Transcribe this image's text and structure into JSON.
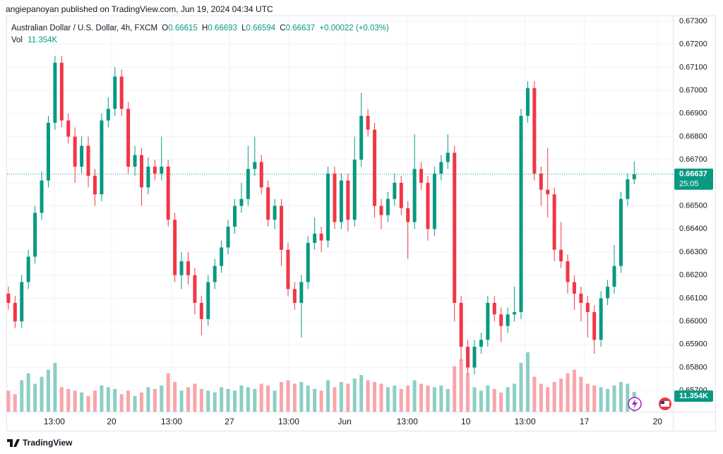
{
  "header": {
    "published": "angiepanoyan published on TradingView.com, Jun 19, 2024 04:34 UTC"
  },
  "footer": {
    "brand": "TradingView"
  },
  "chart_data": {
    "type": "candlestick",
    "title": "Australian Dollar / U.S. Dollar, 4h, FXCM",
    "legend": {
      "o": "O",
      "h": "H",
      "l": "L",
      "c": "C",
      "change": "+0.00022 (+0.03%)",
      "vol": "Vol"
    },
    "last_volume_label": "11.354K",
    "price_tag_time": "25:05",
    "up_color": "#089981",
    "down_color": "#f23645",
    "volume_up_color": "#8ccfc4",
    "volume_down_color": "#f8a5aa",
    "grid": true,
    "open": [
      0.6612,
      0.6608,
      0.66,
      0.6617,
      0.6628,
      0.6647,
      0.6661,
      0.6686,
      0.6712,
      0.6687,
      0.668,
      0.6667,
      0.6676,
      0.6663,
      0.6655,
      0.6687,
      0.6692,
      0.6706,
      0.6692,
      0.6667,
      0.6672,
      0.6658,
      0.6667,
      0.6664,
      0.6667,
      0.6644,
      0.662,
      0.6626,
      0.662,
      0.6608,
      0.6601,
      0.6617,
      0.6624,
      0.6632,
      0.6641,
      0.665,
      0.6653,
      0.6666,
      0.6669,
      0.6658,
      0.6644,
      0.665,
      0.6631,
      0.6614,
      0.6608,
      0.6617,
      0.6634,
      0.6638,
      0.6635,
      0.6664,
      0.6643,
      0.6661,
      0.6644,
      0.667,
      0.6689,
      0.6683,
      0.665,
      0.6646,
      0.6653,
      0.666,
      0.6649,
      0.6643,
      0.6666,
      0.666,
      0.664,
      0.6664,
      0.6669,
      0.6673,
      0.6608,
      0.6589,
      0.658,
      0.6589,
      0.6592,
      0.6608,
      0.6603,
      0.6598,
      0.6603,
      0.6604,
      0.6689,
      0.6701,
      0.6664,
      0.6657,
      0.6655,
      0.6631,
      0.6626,
      0.6617,
      0.6612,
      0.6608,
      0.6604,
      0.6592,
      0.661,
      0.6615,
      0.6624,
      0.6653,
      0.66615
    ],
    "high": [
      0.6615,
      0.6611,
      0.662,
      0.6631,
      0.665,
      0.6665,
      0.6689,
      0.6715,
      0.6715,
      0.669,
      0.6684,
      0.668,
      0.668,
      0.6666,
      0.669,
      0.6697,
      0.671,
      0.6709,
      0.6695,
      0.6676,
      0.6675,
      0.6671,
      0.667,
      0.668,
      0.667,
      0.6647,
      0.663,
      0.663,
      0.6623,
      0.6611,
      0.662,
      0.6627,
      0.6635,
      0.6644,
      0.6653,
      0.666,
      0.6676,
      0.668,
      0.6672,
      0.6661,
      0.6653,
      0.6653,
      0.6634,
      0.6617,
      0.662,
      0.6637,
      0.6645,
      0.6641,
      0.6667,
      0.6667,
      0.6664,
      0.6664,
      0.668,
      0.6699,
      0.6692,
      0.6686,
      0.6653,
      0.6656,
      0.6664,
      0.6663,
      0.6652,
      0.6681,
      0.6669,
      0.6663,
      0.6667,
      0.6672,
      0.6681,
      0.6676,
      0.6611,
      0.6592,
      0.6592,
      0.6595,
      0.6611,
      0.6611,
      0.6606,
      0.6606,
      0.6615,
      0.6692,
      0.6704,
      0.6704,
      0.6667,
      0.6675,
      0.6658,
      0.6643,
      0.6629,
      0.662,
      0.6615,
      0.6611,
      0.6607,
      0.6613,
      0.6618,
      0.6633,
      0.6656,
      0.6664,
      0.66693
    ],
    "low": [
      0.6605,
      0.6597,
      0.6597,
      0.6614,
      0.6625,
      0.6644,
      0.6658,
      0.6683,
      0.6684,
      0.6677,
      0.666,
      0.6664,
      0.6658,
      0.665,
      0.6652,
      0.6684,
      0.6689,
      0.6689,
      0.6664,
      0.6663,
      0.665,
      0.6655,
      0.6661,
      0.6661,
      0.6641,
      0.6617,
      0.6614,
      0.6616,
      0.6603,
      0.6594,
      0.6598,
      0.6614,
      0.6621,
      0.6629,
      0.6638,
      0.6647,
      0.665,
      0.6663,
      0.6655,
      0.6641,
      0.664,
      0.6624,
      0.6611,
      0.6605,
      0.6593,
      0.6614,
      0.6631,
      0.663,
      0.6632,
      0.664,
      0.664,
      0.6639,
      0.6641,
      0.6667,
      0.668,
      0.6645,
      0.664,
      0.6643,
      0.665,
      0.6646,
      0.6627,
      0.664,
      0.6657,
      0.6635,
      0.6637,
      0.6661,
      0.6666,
      0.66,
      0.6583,
      0.6577,
      0.6577,
      0.6586,
      0.6589,
      0.66,
      0.6591,
      0.6595,
      0.66,
      0.6601,
      0.6686,
      0.6661,
      0.665,
      0.6645,
      0.6626,
      0.6623,
      0.6612,
      0.6605,
      0.66,
      0.6593,
      0.6586,
      0.6589,
      0.6607,
      0.6612,
      0.6621,
      0.665,
      0.66594
    ],
    "close": [
      0.6608,
      0.66,
      0.6617,
      0.6628,
      0.6647,
      0.6661,
      0.6686,
      0.6712,
      0.6687,
      0.668,
      0.6667,
      0.6676,
      0.6663,
      0.6655,
      0.6687,
      0.6692,
      0.6706,
      0.6692,
      0.6667,
      0.6672,
      0.6658,
      0.6667,
      0.6664,
      0.6667,
      0.6644,
      0.662,
      0.6626,
      0.662,
      0.6608,
      0.6601,
      0.6617,
      0.6624,
      0.6632,
      0.6641,
      0.665,
      0.6653,
      0.6666,
      0.6669,
      0.6658,
      0.6644,
      0.665,
      0.6631,
      0.6614,
      0.6608,
      0.6617,
      0.6634,
      0.6638,
      0.6635,
      0.6664,
      0.6643,
      0.6661,
      0.6644,
      0.667,
      0.6689,
      0.6683,
      0.665,
      0.6646,
      0.6653,
      0.666,
      0.6649,
      0.6643,
      0.6666,
      0.666,
      0.664,
      0.6664,
      0.6669,
      0.6673,
      0.6608,
      0.6589,
      0.658,
      0.6589,
      0.6592,
      0.6608,
      0.6603,
      0.6598,
      0.6603,
      0.6604,
      0.6689,
      0.6701,
      0.6664,
      0.6657,
      0.6655,
      0.6631,
      0.6626,
      0.6617,
      0.6612,
      0.6608,
      0.6604,
      0.6592,
      0.661,
      0.6615,
      0.6624,
      0.6653,
      0.66615,
      0.66637
    ],
    "volume": [
      12000,
      10000,
      18000,
      22000,
      16000,
      20000,
      24000,
      28000,
      14000,
      13000,
      12000,
      11000,
      9000,
      12000,
      15000,
      14000,
      13000,
      10000,
      12000,
      9000,
      11000,
      14000,
      13000,
      15000,
      22000,
      17000,
      12000,
      14000,
      16000,
      13000,
      12000,
      11000,
      14000,
      13000,
      12000,
      15000,
      14000,
      13000,
      16000,
      15000,
      12000,
      17000,
      18000,
      16000,
      17000,
      15000,
      13000,
      12000,
      18000,
      14000,
      17000,
      16000,
      19000,
      21000,
      18000,
      17000,
      16000,
      14000,
      15000,
      13000,
      15000,
      18000,
      16000,
      15000,
      14000,
      15000,
      13000,
      26000,
      30000,
      22000,
      14000,
      12000,
      15000,
      13000,
      11000,
      14000,
      16000,
      28000,
      34000,
      20000,
      16000,
      14000,
      17000,
      19000,
      22000,
      24000,
      20000,
      16000,
      15000,
      14000,
      13000,
      15000,
      17000,
      16000,
      11354
    ],
    "xlim": [
      -0.2,
      99.8
    ],
    "ylim": [
      0.65609,
      0.67361
    ],
    "vlim": [
      0,
      232000
    ],
    "xticks": [
      {
        "value": 6.9,
        "label": "13:00"
      },
      {
        "value": 15.5,
        "label": "20"
      },
      {
        "value": 24.5,
        "label": "13:00"
      },
      {
        "value": 33.2,
        "label": "27"
      },
      {
        "value": 42.1,
        "label": "13:00"
      },
      {
        "value": 50.5,
        "label": "Jun"
      },
      {
        "value": 59.9,
        "label": "13:00"
      },
      {
        "value": 68.7,
        "label": "10"
      },
      {
        "value": 77.6,
        "label": "13:00"
      },
      {
        "value": 86.5,
        "label": "17"
      },
      {
        "value": 97.5,
        "label": "20"
      }
    ],
    "yticks": [
      {
        "value": 0.673,
        "label": "0.67300"
      },
      {
        "value": 0.672,
        "label": "0.67200"
      },
      {
        "value": 0.671,
        "label": "0.67100"
      },
      {
        "value": 0.67,
        "label": "0.67000"
      },
      {
        "value": 0.669,
        "label": "0.66900"
      },
      {
        "value": 0.668,
        "label": "0.66800"
      },
      {
        "value": 0.667,
        "label": "0.66700"
      },
      {
        "value": 0.666,
        "label": "0.66600"
      },
      {
        "value": 0.665,
        "label": "0.66500"
      },
      {
        "value": 0.664,
        "label": "0.66400"
      },
      {
        "value": 0.663,
        "label": "0.66300"
      },
      {
        "value": 0.662,
        "label": "0.66200"
      },
      {
        "value": 0.661,
        "label": "0.66100"
      },
      {
        "value": 0.66,
        "label": "0.66000"
      },
      {
        "value": 0.659,
        "label": "0.65900"
      },
      {
        "value": 0.658,
        "label": "0.65800"
      },
      {
        "value": 0.657,
        "label": "0.65700"
      }
    ]
  }
}
